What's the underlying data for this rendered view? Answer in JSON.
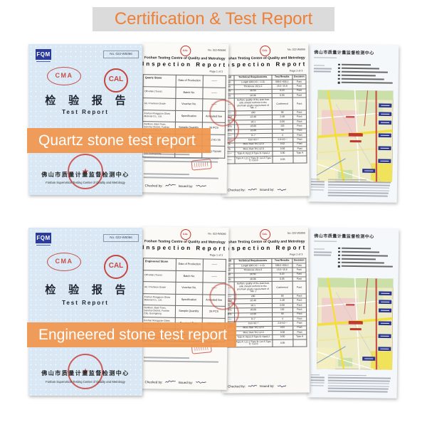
{
  "page": {
    "title": "Certification & Test Report"
  },
  "theme": {
    "accent_orange": "#ED8038",
    "banner_orange": "#F0964D",
    "stamp_red": "#C2362B",
    "cover_blue": "#D9E8F4",
    "logo_blue": "#2B3B9B"
  },
  "rows": [
    {
      "banner": "Quartz stone test report",
      "product": "Quartz Stone"
    },
    {
      "banner": "Engineered stone test report",
      "product": "Engineered Stone"
    }
  ],
  "cover": {
    "logo": "FQM",
    "report_no": "No. 022-W5066",
    "stamp_left": "CMA",
    "stamp_right": "CAL",
    "title_cn": "检 验 报 告",
    "title_en": "Test Report",
    "seal_star": "★",
    "org_cn": "佛山市质量计量监督检测中心",
    "org_en": "Foshan Supervision Testing Center of Quality and Metrology"
  },
  "page1": {
    "org": "Foshan Testing Centre of Quality and Metrology",
    "title": "Inspection Report",
    "report_no": "No. 022-W5066",
    "page_no": "Page 1 of 3",
    "info_rows": [
      {
        "left": "",
        "label": "Date of Production",
        "value": "——"
      },
      {
        "left": "Off-white (Trans)",
        "label": "Batch No.",
        "value": "——"
      },
      {
        "left": "A5 / Premium Grade",
        "label": "Voucher No.",
        "value": "——"
      },
      {
        "left": "Foshan Rongguan Glass Material Co., Ltd.",
        "label": "Specification",
        "value": "Annealed line"
      },
      {
        "left": "Nanbian, Baini Town, Sanshui District, Foshan City, Guangdong",
        "label": "Sample Quantity",
        "value": "26 PCS"
      },
      {
        "left": "Foshan Rongguan Glass Material Co., Ltd.",
        "label": "Received Date",
        "value": "2012-01-16"
      },
      {
        "left": "Nanbian, Baini Town, Sanshui District, Foshan City, Guangdong",
        "label": "Sample Receiver",
        "value": "Deng Yayuan"
      }
    ],
    "checked_by": "Checked by:",
    "issued_by": "Issued by:"
  },
  "page2": {
    "org": "Foshan Testing Centre of Quality and Metrology",
    "title": "Inspection Report",
    "report_no": "No. 022-W5066",
    "page_no": "Page 2 of 3",
    "columns": [
      "Unit",
      "Technical Requirements",
      "Test Results",
      "Decision"
    ],
    "rows": [
      {
        "unit": "mm",
        "req": "Length 600 (+0 / −1.0)",
        "result": "599.5~600.2",
        "decision": "Pass"
      },
      {
        "unit": "mm",
        "req": "Thickness 15±1.0",
        "result": "15.5~15.8",
        "decision": "Pass"
      },
      {
        "unit": "mm",
        "req": "≤0.50",
        "result": "0.20",
        "decision": "Pass"
      },
      {
        "unit": "mm",
        "req": "≤0.06",
        "result": "0.05",
        "decision": "Pass"
      },
      {
        "unit": "——",
        "req": "Surface quality of the slab front side should conform to the premium grade requirement of Tab. 1",
        "result": "Conformed",
        "decision": "Pass"
      },
      {
        "unit": "——",
        "req": "≥50",
        "result": "58",
        "decision": "Pass"
      },
      {
        "unit": "g/cm³",
        "req": "≥2.40",
        "result": "2.48",
        "decision": "Pass"
      },
      {
        "unit": "%",
        "req": "≤0.1",
        "result": "0.06",
        "decision": "Pass"
      },
      {
        "unit": "MPa",
        "req": "≥5.00",
        "result": "102",
        "decision": "Pass"
      },
      {
        "unit": "MPa",
        "req": "≥1.00",
        "result": "56",
        "decision": "Pass"
      },
      {
        "unit": "——",
        "req": "0~7",
        "result": "4",
        "decision": "Pass"
      },
      {
        "unit": "g/cm²",
        "req": "C≤1×10⁻³",
        "result": "2.6×10⁻⁴",
        "decision": "Pass"
      },
      {
        "unit": "%",
        "req": "More than TK1 ≤2.0",
        "result": "0.62",
        "decision": "Pass"
      },
      {
        "unit": "%",
        "req": "More than TK1 ≤2.0",
        "result": "0.56",
        "decision": "Pass"
      },
      {
        "unit": "——",
        "req": "Type A: Kp≤2.0  Type B: Kp≤3.2",
        "result": "0.60",
        "decision": "Type A"
      },
      {
        "unit": "——",
        "req": "Type A: L≤1.2  Type B: L≤1.5  Type C: L≤2.0",
        "result": "0.65",
        "decision": ""
      }
    ],
    "checked_by": "Checked by:",
    "issued_by": "Issued by:"
  },
  "page4": {
    "org_cn": "佛山市质量计量监督检测中心"
  }
}
